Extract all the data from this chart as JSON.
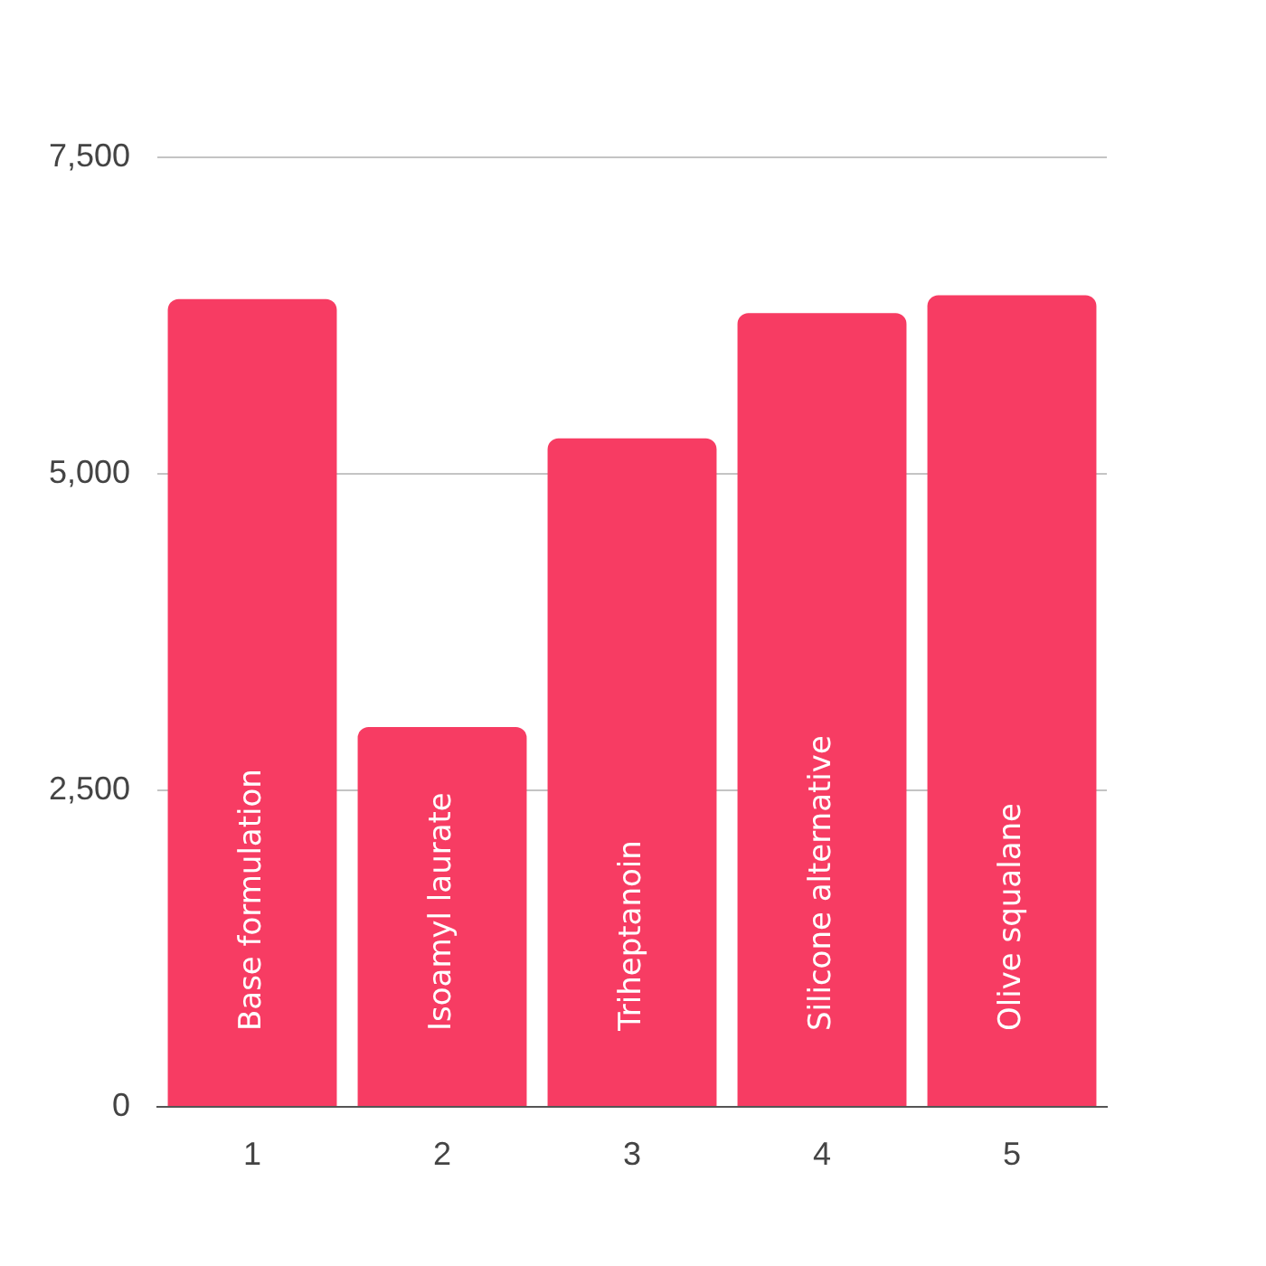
{
  "chart_data": {
    "type": "bar",
    "categories": [
      "1",
      "2",
      "3",
      "4",
      "5"
    ],
    "values": [
      6380,
      3000,
      5280,
      6270,
      6410
    ],
    "color": "#f73c63",
    "ylim": [
      0,
      7500
    ],
    "yticks": [
      0,
      {
        "value": 2500,
        "label": "2,500"
      },
      {
        "value": 5000,
        "label": "5,000"
      },
      {
        "value": 7500,
        "label": "7,500"
      }
    ],
    "grid": "y",
    "annotations": [
      "Base formulation",
      "Isoamyl laurate",
      "Triheptanoin",
      "Silicone alternative",
      "Olive squalane"
    ]
  }
}
